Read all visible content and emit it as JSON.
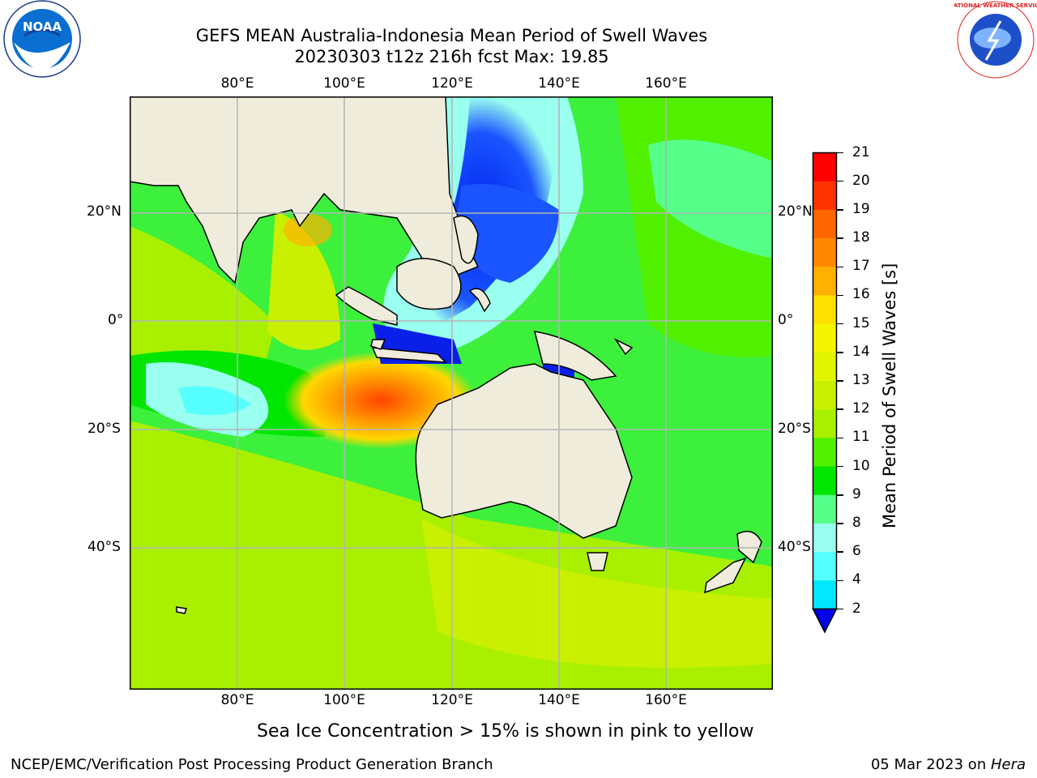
{
  "header": {
    "title_line1": "GEFS MEAN Australia-Indonesia Mean Period of Swell Waves",
    "title_line2": "20230303 t12z 216h fcst   Max: 19.85"
  },
  "logos": {
    "left_logo_text": "NOAA",
    "right_logo_text": "NATIONAL WEATHER SERVICE"
  },
  "map": {
    "lon_labels": [
      "80°E",
      "100°E",
      "120°E",
      "140°E",
      "160°E"
    ],
    "lat_labels": [
      "20°N",
      "0°",
      "20°S",
      "40°S"
    ],
    "colors": {
      "land": "#efecdc",
      "coast": "#000000",
      "grid": "#b4b4b4"
    }
  },
  "colorbar": {
    "label": "Mean Period of Swell Waves [s]",
    "ticks": [
      "21",
      "20",
      "19",
      "18",
      "17",
      "16",
      "15",
      "14",
      "13",
      "12",
      "11",
      "10",
      "9",
      "8",
      "6",
      "4",
      "2"
    ],
    "colors_top_to_bottom": [
      "#ff0000",
      "#ff3300",
      "#ff6600",
      "#ff8800",
      "#ffb000",
      "#ffe000",
      "#f5f500",
      "#e0f500",
      "#c8f000",
      "#a8f000",
      "#50f000",
      "#00e600",
      "#55ff88",
      "#99ffee",
      "#55ffff",
      "#00e8ff",
      "#0080ff",
      "#0000ee"
    ]
  },
  "footer": {
    "sea_ice_note": "Sea Ice Concentration > 15% is shown in pink to yellow",
    "branch": "NCEP/EMC/Verification Post Processing Product Generation Branch",
    "date_prefix": "05 Mar 2023 on ",
    "machine": "Hera"
  }
}
